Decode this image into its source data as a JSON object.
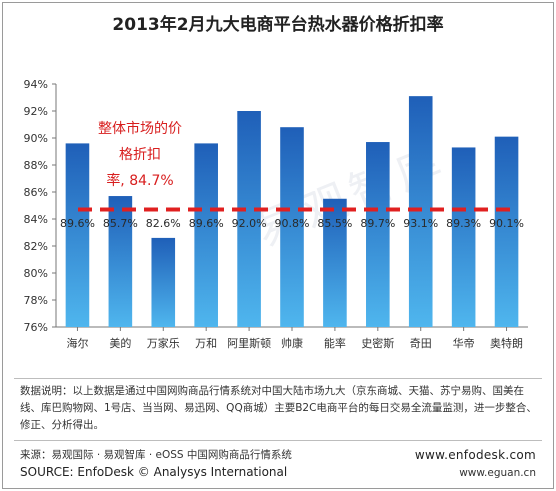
{
  "title": "2013年2月九大电商平台热水器价格折扣率",
  "annotation": {
    "line1": "整体市场的价",
    "line2": "格折扣",
    "line3": "率, 84.7%"
  },
  "note": "数据说明：以上数据是通过中国网购商品行情系统对中国大陆市场九大（京东商城、天猫、苏宁易购、国美在线、库巴购物网、1号店、当当网、易迅网、QQ商城）主要B2C电商平台的每日交易全流量监测，进一步整合、修正、分析得出。",
  "source_cn": "来源：易观国际 · 易观智库 · eOSS 中国网购商品行情系统",
  "source_en": "SOURCE: EnfoDesk © Analysys International",
  "url1": "www.enfodesk.com",
  "url2": "www.eguan.cn",
  "watermark": "易观智库",
  "colors": {
    "bar_top": "#1f5fb8",
    "bar_bottom": "#4fb6ee",
    "avg_line": "#e02020",
    "annotation": "#d81e1e"
  },
  "chart_data": {
    "type": "bar",
    "title": "2013年2月九大电商平台热水器价格折扣率",
    "categories": [
      "海尔",
      "美的",
      "万家乐",
      "万和",
      "阿里斯顿",
      "帅康",
      "能率",
      "史密斯",
      "奇田",
      "华帝",
      "奥特朗"
    ],
    "values": [
      89.6,
      85.7,
      82.6,
      89.6,
      92.0,
      90.8,
      85.5,
      89.7,
      93.1,
      89.3,
      90.1
    ],
    "value_labels": [
      "89.6%",
      "85.7%",
      "82.6%",
      "89.6%",
      "92.0%",
      "90.8%",
      "85.5%",
      "89.7%",
      "93.1%",
      "89.3%",
      "90.1%"
    ],
    "average": 84.7,
    "ylim": [
      76,
      94
    ],
    "yticks": [
      76,
      78,
      80,
      82,
      84,
      86,
      88,
      90,
      92,
      94
    ],
    "ytick_labels": [
      "76%",
      "78%",
      "80%",
      "82%",
      "84%",
      "86%",
      "88%",
      "90%",
      "92%",
      "94%"
    ],
    "xlabel": "",
    "ylabel": "",
    "grid": false,
    "legend": "none"
  }
}
